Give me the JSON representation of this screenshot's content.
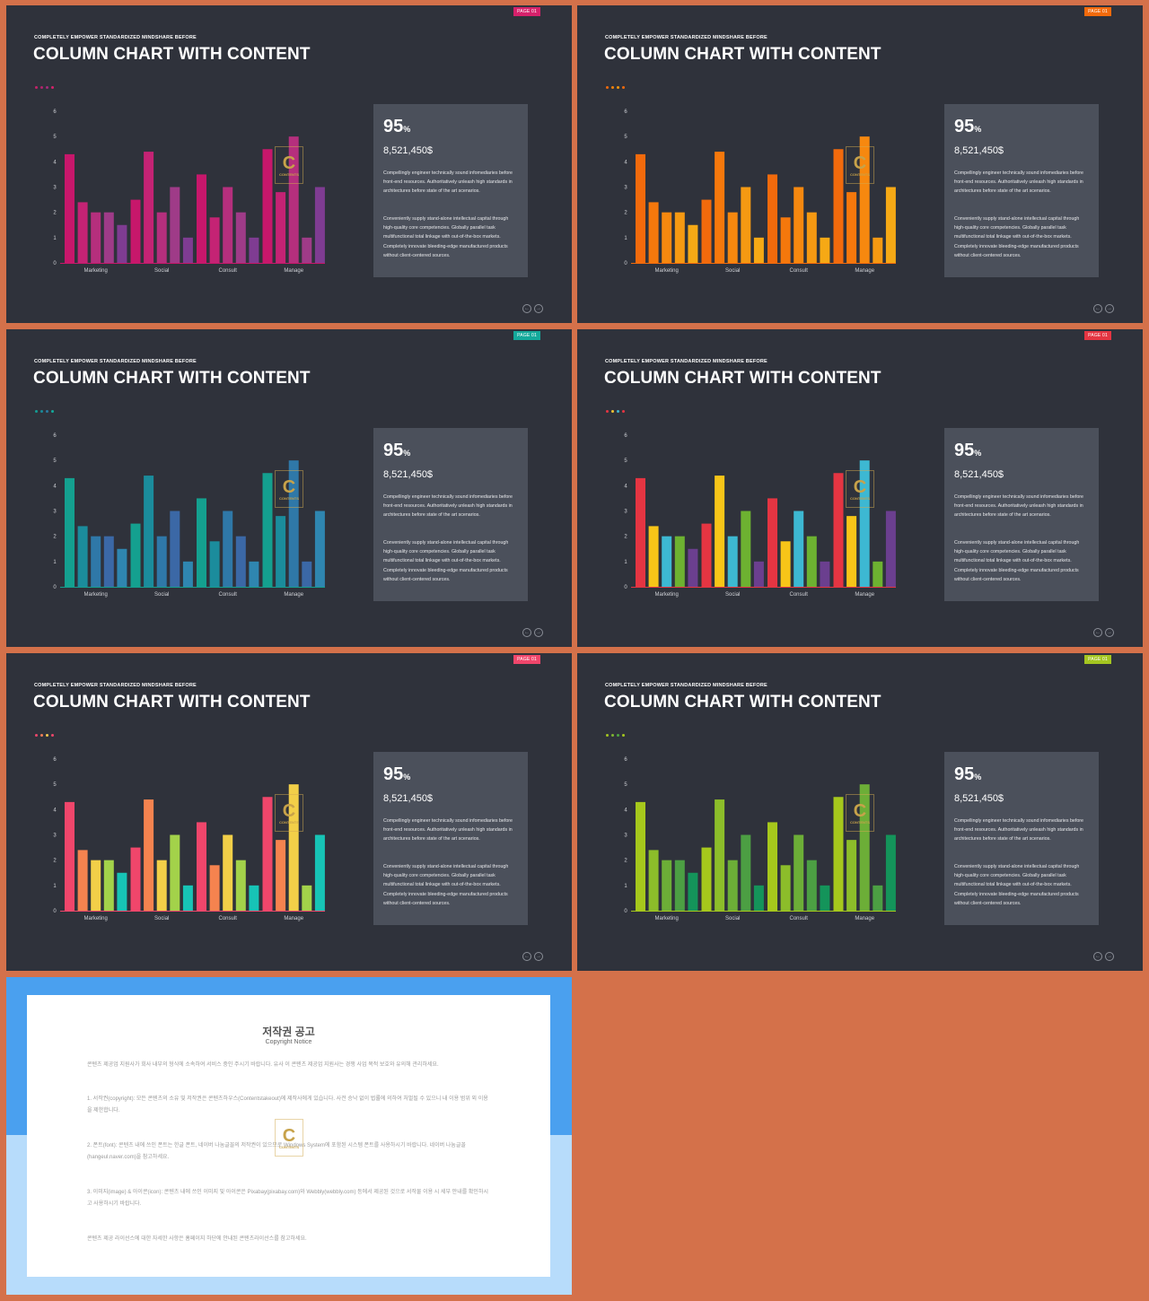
{
  "slides": [
    {
      "tag": "PAGE 01",
      "tag_color": "#d6216b",
      "subtitle": "COMPLETELY EMPOWER STANDARDIZED MINDSHARE BEFORE",
      "title": "COLUMN CHART WITH CONTENT",
      "dot_colors": [
        "#c3236a",
        "#b3236d",
        "#a42c7c",
        "#d6216b"
      ],
      "percent": "95",
      "percent_sign": "%",
      "amount": "8,521,450$",
      "paragraph1": "Compellingly engineer technically sound infomediaries before front-end resources. Authoritatively unleash high standards in architectures before state of the art scenarios.",
      "paragraph2": "Conveniently supply stand-alone intellectual capital through high-quality core competencies. Globally parallel task multifunctional total linkage with out-of-the-box markets. Completely innovate bleeding-edge manufactured products without client-centered sources.",
      "bar_colors": [
        "#c7176b",
        "#c42374",
        "#b52f7d",
        "#9f3b88",
        "#7f3c92"
      ]
    },
    {
      "tag": "PAGE 01",
      "tag_color": "#f26a0c",
      "subtitle": "COMPLETELY EMPOWER STANDARDIZED MINDSHARE BEFORE",
      "title": "COLUMN CHART WITH CONTENT",
      "dot_colors": [
        "#f26a0c",
        "#f5820a",
        "#f6960d",
        "#f26a0c"
      ],
      "percent": "95",
      "percent_sign": "%",
      "amount": "8,521,450$",
      "paragraph1": "Compellingly engineer technically sound infomediaries before front-end resources. Authoritatively unleash high standards in architectures before state of the art scenarios.",
      "paragraph2": "Conveniently supply stand-alone intellectual capital through high-quality core competencies. Globally parallel task multifunctional total linkage with out-of-the-box markets. Completely innovate bleeding-edge manufactured products without client-centered sources.",
      "bar_colors": [
        "#f26a0c",
        "#f5780c",
        "#f6880f",
        "#f59912",
        "#f6a915"
      ]
    },
    {
      "tag": "PAGE 01",
      "tag_color": "#14a99b",
      "subtitle": "COMPLETELY EMPOWER STANDARDIZED MINDSHARE BEFORE",
      "title": "COLUMN CHART WITH CONTENT",
      "dot_colors": [
        "#149c93",
        "#1a8a98",
        "#2a7aa0",
        "#14a99b"
      ],
      "percent": "95",
      "percent_sign": "%",
      "amount": "8,521,450$",
      "paragraph1": "Compellingly engineer technically sound infomediaries before front-end resources. Authoritatively unleash high standards in architectures before state of the art scenarios.",
      "paragraph2": "Conveniently supply stand-alone intellectual capital through high-quality core competencies. Globally parallel task multifunctional total linkage with out-of-the-box markets. Completely innovate bleeding-edge manufactured products without client-centered sources.",
      "bar_colors": [
        "#14a08f",
        "#1b8c9c",
        "#2f78a8",
        "#3b68a6",
        "#2f86b0"
      ]
    },
    {
      "tag": "PAGE 01",
      "tag_color": "#e53542",
      "subtitle": "COMPLETELY EMPOWER STANDARDIZED MINDSHARE BEFORE",
      "title": "COLUMN CHART WITH CONTENT",
      "dot_colors": [
        "#e53542",
        "#f1c232",
        "#3fb6d0",
        "#e53542"
      ],
      "percent": "95",
      "percent_sign": "%",
      "amount": "8,521,450$",
      "paragraph1": "Compellingly engineer technically sound infomediaries before front-end resources. Authoritatively unleash high standards in architectures before state of the art scenarios.",
      "paragraph2": "Conveniently supply stand-alone intellectual capital through high-quality core competencies. Globally parallel task multifunctional total linkage with out-of-the-box markets. Completely innovate bleeding-edge manufactured products without client-centered sources.",
      "bar_colors": [
        "#e53542",
        "#f7c518",
        "#3db8d2",
        "#6db231",
        "#6b3f8f"
      ]
    },
    {
      "tag": "PAGE 01",
      "tag_color": "#f0466b",
      "subtitle": "COMPLETELY EMPOWER STANDARDIZED MINDSHARE BEFORE",
      "title": "COLUMN CHART WITH CONTENT",
      "dot_colors": [
        "#f0466b",
        "#f57f57",
        "#f6c94d",
        "#f0466b"
      ],
      "percent": "95",
      "percent_sign": "%",
      "amount": "8,521,450$",
      "paragraph1": "Compellingly engineer technically sound infomediaries before front-end resources. Authoritatively unleash high standards in architectures before state of the art scenarios.",
      "paragraph2": "Conveniently supply stand-alone intellectual capital through high-quality core competencies. Globally parallel task multifunctional total linkage with out-of-the-box markets. Completely innovate bleeding-edge manufactured products without client-centered sources.",
      "bar_colors": [
        "#f0466b",
        "#f5834f",
        "#f2cf48",
        "#a3d24a",
        "#17c4b6"
      ]
    },
    {
      "tag": "PAGE 01",
      "tag_color": "#a4c520",
      "subtitle": "COMPLETELY EMPOWER STANDARDIZED MINDSHARE BEFORE",
      "title": "COLUMN CHART WITH CONTENT",
      "dot_colors": [
        "#a4c520",
        "#7fb632",
        "#4ea640",
        "#a4c520"
      ],
      "percent": "95",
      "percent_sign": "%",
      "amount": "8,521,450$",
      "paragraph1": "Compellingly engineer technically sound infomediaries before front-end resources. Authoritatively unleash high standards in architectures before state of the art scenarios.",
      "paragraph2": "Conveniently supply stand-alone intellectual capital through high-quality core competencies. Globally parallel task multifunctional total linkage with out-of-the-box markets. Completely innovate bleeding-edge manufactured products without client-centered sources.",
      "bar_colors": [
        "#a6c81c",
        "#8cbd2a",
        "#6cae37",
        "#4c9f43",
        "#14945a"
      ]
    }
  ],
  "chart_data": {
    "type": "bar",
    "categories": [
      "Marketing",
      "Social",
      "Consult",
      "Manage"
    ],
    "series": [
      {
        "values": [
          4.3,
          2.5,
          3.5,
          4.5
        ]
      },
      {
        "values": [
          2.4,
          4.4,
          1.8,
          2.8
        ]
      },
      {
        "values": [
          2.0,
          2.0,
          3.0,
          5.0
        ]
      },
      {
        "values": [
          2.0,
          3.0,
          2.0,
          1.0
        ]
      },
      {
        "values": [
          1.5,
          1.0,
          1.0,
          3.0
        ]
      }
    ],
    "ylim": [
      0,
      6
    ],
    "yticks": [
      "0",
      "1",
      "2",
      "3",
      "4",
      "5",
      "6"
    ],
    "grid": false
  },
  "watermark": {
    "letter": "C",
    "text": "CONTENTS"
  },
  "notice": {
    "title": "저작권 공고",
    "subtitle": "Copyright Notice",
    "para1": "콘텐츠 제공업 지원사가 회사 내부의 형식에 소속하여 서비스 중인 주시기 바랍니다. 유사 이 콘텐츠 제공업 지원사는 경쟁 사업 목적 보호와 유의해 관리하세요.",
    "para2": "1. 서작권(copyright): 모든 콘텐츠의 소유 및 저작권은 콘텐츠하우스(Contentstakeout)에 제작사에게 있습니다. 사전 승낙 없이 법률에 의하여 처벌될 수 있으니 내 이용 범위 외 이용을 제한합니다.",
    "para3": "2. 폰트(font): 콘텐츠 내에 쓰인 폰트는 한글 폰트, 네이버 나눔글꼴의 저작권이 있으므로 Windows System에 포함된 시스템 폰트를 사용하시기 바랍니다. 네이버 나눔글꼴(hangeul.naver.com)을 참고하세요.",
    "para4": "3. 이미지(image) & 아이콘(icon): 콘텐츠 내에 쓰인 이미지 및 아이콘은 Pixabay(pixabay.com)와 Webbly(webbly.com) 등에서 제공된 것으로 서작물 이용 시 세부 안내를 확인하시고 사용하시기 바랍니다.",
    "para5": "콘텐츠 제공 라이선스에 대한 자세한 사항은 홈페이지 하단에 안내된 콘텐츠라이선스를 참고하세요."
  }
}
